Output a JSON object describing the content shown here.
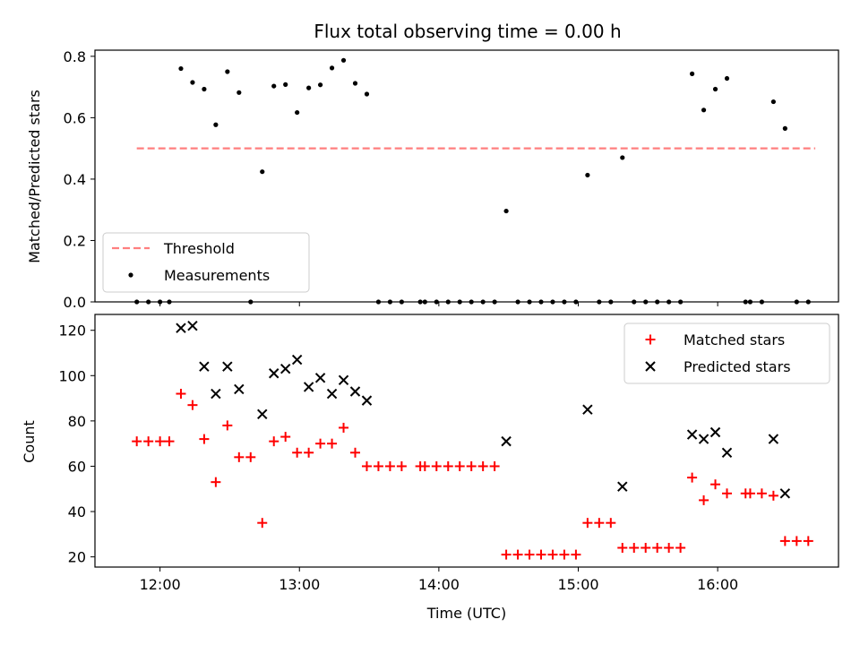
{
  "chart_data": [
    {
      "type": "scatter",
      "panel": "top",
      "title": "Flux total observing time = 0.00 h",
      "xlabel": "",
      "ylabel": "Matched/Predicted stars",
      "ylim": [
        0,
        0.82
      ],
      "yticks": [
        0.0,
        0.2,
        0.4,
        0.6,
        0.8
      ],
      "ytick_labels": [
        "0.0",
        "0.2",
        "0.4",
        "0.6",
        "0.8"
      ],
      "xlim": [
        "11:32",
        "16:52"
      ],
      "xticks": [
        "12:00",
        "13:00",
        "14:00",
        "15:00",
        "16:00"
      ],
      "legend_position": "lower-left",
      "colors": {
        "threshold": "#ff7f7f",
        "measurements": "#000000"
      },
      "threshold": {
        "name": "Threshold",
        "y": 0.5,
        "x_start": "11:50",
        "x_end": "16:42"
      },
      "series": [
        {
          "name": "Measurements",
          "points": [
            [
              "11:50",
              0.0
            ],
            [
              "11:55",
              0.0
            ],
            [
              "12:00",
              0.0
            ],
            [
              "12:04",
              0.0
            ],
            [
              "12:09",
              0.76
            ],
            [
              "12:14",
              0.715
            ],
            [
              "12:19",
              0.693
            ],
            [
              "12:24",
              0.577
            ],
            [
              "12:29",
              0.75
            ],
            [
              "12:34",
              0.682
            ],
            [
              "12:39",
              0.0
            ],
            [
              "12:44",
              0.424
            ],
            [
              "12:49",
              0.703
            ],
            [
              "12:54",
              0.708
            ],
            [
              "12:59",
              0.617
            ],
            [
              "13:04",
              0.697
            ],
            [
              "13:09",
              0.707
            ],
            [
              "13:14",
              0.762
            ],
            [
              "13:19",
              0.787
            ],
            [
              "13:24",
              0.712
            ],
            [
              "13:29",
              0.677
            ],
            [
              "13:34",
              0.0
            ],
            [
              "13:39",
              0.0
            ],
            [
              "13:44",
              0.0
            ],
            [
              "13:52",
              0.0
            ],
            [
              "13:54",
              0.0
            ],
            [
              "13:59",
              0.0
            ],
            [
              "14:04",
              0.0
            ],
            [
              "14:09",
              0.0
            ],
            [
              "14:14",
              0.0
            ],
            [
              "14:19",
              0.0
            ],
            [
              "14:24",
              0.0
            ],
            [
              "14:29",
              0.296
            ],
            [
              "14:34",
              0.0
            ],
            [
              "14:39",
              0.0
            ],
            [
              "14:44",
              0.0
            ],
            [
              "14:49",
              0.0
            ],
            [
              "14:54",
              0.0
            ],
            [
              "14:59",
              0.0
            ],
            [
              "15:04",
              0.413
            ],
            [
              "15:09",
              0.0
            ],
            [
              "15:14",
              0.0
            ],
            [
              "15:19",
              0.47
            ],
            [
              "15:24",
              0.0
            ],
            [
              "15:29",
              0.0
            ],
            [
              "15:34",
              0.0
            ],
            [
              "15:39",
              0.0
            ],
            [
              "15:44",
              0.0
            ],
            [
              "15:49",
              0.743
            ],
            [
              "15:54",
              0.625
            ],
            [
              "15:59",
              0.693
            ],
            [
              "16:04",
              0.728
            ],
            [
              "16:12",
              0.0
            ],
            [
              "16:14",
              0.0
            ],
            [
              "16:19",
              0.0
            ],
            [
              "16:24",
              0.652
            ],
            [
              "16:29",
              0.565
            ],
            [
              "16:34",
              0.0
            ],
            [
              "16:39",
              0.0
            ]
          ]
        }
      ]
    },
    {
      "type": "scatter",
      "panel": "bottom",
      "title": "",
      "xlabel": "Time (UTC)",
      "ylabel": "Count",
      "ylim": [
        15.5,
        127
      ],
      "yticks": [
        20,
        40,
        60,
        80,
        100,
        120
      ],
      "ytick_labels": [
        "20",
        "40",
        "60",
        "80",
        "100",
        "120"
      ],
      "xlim": [
        "11:32",
        "16:52"
      ],
      "xticks": [
        "12:00",
        "13:00",
        "14:00",
        "15:00",
        "16:00"
      ],
      "xtick_labels": [
        "12:00",
        "13:00",
        "14:00",
        "15:00",
        "16:00"
      ],
      "legend_position": "top-right",
      "colors": {
        "matched": "#ff0000",
        "predicted": "#000000"
      },
      "series": [
        {
          "name": "Matched stars",
          "marker": "+",
          "points": [
            [
              "11:50",
              71
            ],
            [
              "11:55",
              71
            ],
            [
              "12:00",
              71
            ],
            [
              "12:04",
              71
            ],
            [
              "12:09",
              92
            ],
            [
              "12:14",
              87
            ],
            [
              "12:19",
              72
            ],
            [
              "12:24",
              53
            ],
            [
              "12:29",
              78
            ],
            [
              "12:34",
              64
            ],
            [
              "12:39",
              64
            ],
            [
              "12:44",
              35
            ],
            [
              "12:49",
              71
            ],
            [
              "12:54",
              73
            ],
            [
              "12:59",
              66
            ],
            [
              "13:04",
              66
            ],
            [
              "13:09",
              70
            ],
            [
              "13:14",
              70
            ],
            [
              "13:19",
              77
            ],
            [
              "13:24",
              66
            ],
            [
              "13:29",
              60
            ],
            [
              "13:34",
              60
            ],
            [
              "13:39",
              60
            ],
            [
              "13:44",
              60
            ],
            [
              "13:52",
              60
            ],
            [
              "13:54",
              60
            ],
            [
              "13:59",
              60
            ],
            [
              "14:04",
              60
            ],
            [
              "14:09",
              60
            ],
            [
              "14:14",
              60
            ],
            [
              "14:19",
              60
            ],
            [
              "14:24",
              60
            ],
            [
              "14:29",
              21
            ],
            [
              "14:34",
              21
            ],
            [
              "14:39",
              21
            ],
            [
              "14:44",
              21
            ],
            [
              "14:49",
              21
            ],
            [
              "14:54",
              21
            ],
            [
              "14:59",
              21
            ],
            [
              "15:04",
              35
            ],
            [
              "15:09",
              35
            ],
            [
              "15:14",
              35
            ],
            [
              "15:19",
              24
            ],
            [
              "15:24",
              24
            ],
            [
              "15:29",
              24
            ],
            [
              "15:34",
              24
            ],
            [
              "15:39",
              24
            ],
            [
              "15:44",
              24
            ],
            [
              "15:49",
              55
            ],
            [
              "15:54",
              45
            ],
            [
              "15:59",
              52
            ],
            [
              "16:04",
              48
            ],
            [
              "16:12",
              48
            ],
            [
              "16:14",
              48
            ],
            [
              "16:19",
              48
            ],
            [
              "16:24",
              47
            ],
            [
              "16:29",
              27
            ],
            [
              "16:34",
              27
            ],
            [
              "16:39",
              27
            ]
          ]
        },
        {
          "name": "Predicted stars",
          "marker": "x",
          "points": [
            [
              "12:09",
              121
            ],
            [
              "12:14",
              122
            ],
            [
              "12:19",
              104
            ],
            [
              "12:24",
              92
            ],
            [
              "12:29",
              104
            ],
            [
              "12:34",
              94
            ],
            [
              "12:44",
              83
            ],
            [
              "12:49",
              101
            ],
            [
              "12:54",
              103
            ],
            [
              "12:59",
              107
            ],
            [
              "13:04",
              95
            ],
            [
              "13:09",
              99
            ],
            [
              "13:14",
              92
            ],
            [
              "13:19",
              98
            ],
            [
              "13:24",
              93
            ],
            [
              "13:29",
              89
            ],
            [
              "14:29",
              71
            ],
            [
              "15:04",
              85
            ],
            [
              "15:19",
              51
            ],
            [
              "15:49",
              74
            ],
            [
              "15:54",
              72
            ],
            [
              "15:59",
              75
            ],
            [
              "16:04",
              66
            ],
            [
              "16:24",
              72
            ],
            [
              "16:29",
              48
            ]
          ]
        }
      ]
    }
  ]
}
